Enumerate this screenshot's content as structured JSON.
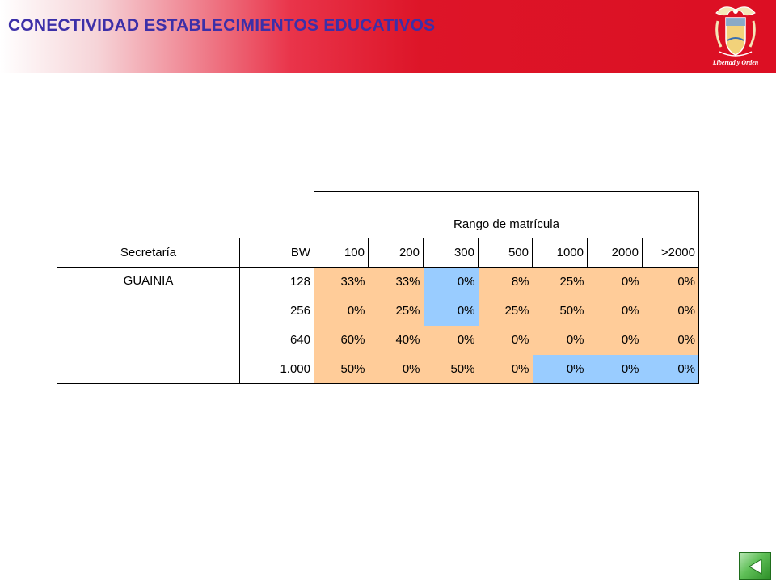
{
  "header": {
    "title": "CONECTIVIDAD ESTABLECIMIENTOS EDUCATIVOS",
    "logo_icon": "colombia-coat-of-arms-icon",
    "logo_caption": "Libertad y Orden",
    "colors": {
      "banner_red": "#dc0f23",
      "title_blue": "#3c2fa8"
    }
  },
  "table": {
    "group_header": "Rango de matrícula",
    "columns": [
      "Secretaría",
      "BW",
      "100",
      "200",
      "300",
      "500",
      "1000",
      "2000",
      ">2000"
    ],
    "secretaria": "GUAINIA",
    "rows": [
      {
        "bw": "128",
        "values": [
          "33%",
          "33%",
          "0%",
          "8%",
          "25%",
          "0%",
          "0%"
        ]
      },
      {
        "bw": "256",
        "values": [
          "0%",
          "25%",
          "0%",
          "25%",
          "50%",
          "0%",
          "0%"
        ]
      },
      {
        "bw": "640",
        "values": [
          "60%",
          "40%",
          "0%",
          "0%",
          "0%",
          "0%",
          "0%"
        ]
      },
      {
        "bw": "1.000",
        "values": [
          "50%",
          "0%",
          "50%",
          "0%",
          "0%",
          "0%",
          "0%"
        ]
      }
    ],
    "colors": {
      "orange": "#ffcc99",
      "blue": "#99ccff"
    }
  },
  "nav": {
    "icon": "nav-back-icon"
  }
}
